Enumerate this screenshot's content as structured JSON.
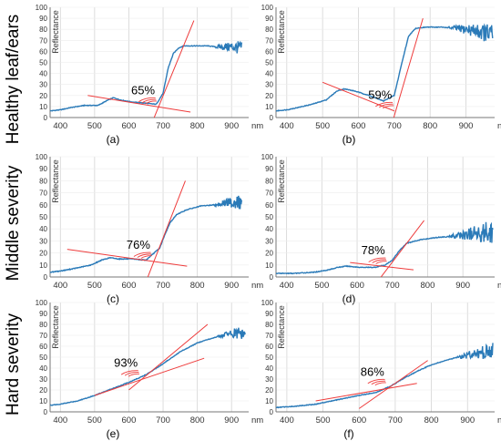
{
  "row_labels": [
    "Healthy leaf/ears",
    "Middle severity",
    "Hard severity"
  ],
  "colors": {
    "spectrum": "#2a7ab8",
    "fit_lines": "#ee3b3b",
    "grid": "#d4d4d4",
    "axis": "#777777"
  },
  "chart_data": [
    {
      "type": "line",
      "panel": "(a)",
      "ylabel": "Reflectance",
      "x_unit": "nm",
      "xlim": [
        370,
        950
      ],
      "ylim": [
        0,
        100
      ],
      "x_ticks": [
        400,
        500,
        600,
        700,
        800,
        900
      ],
      "y_ticks": [
        0,
        10,
        20,
        30,
        40,
        50,
        60,
        70,
        80,
        90,
        100
      ],
      "annotation": "65%",
      "spectrum": {
        "x": [
          370,
          400,
          430,
          470,
          510,
          540,
          555,
          575,
          610,
          650,
          680,
          700,
          715,
          730,
          745,
          760,
          790,
          830,
          860,
          900,
          930
        ],
        "y": [
          6,
          7,
          9,
          11,
          11,
          16,
          18,
          16,
          14,
          13,
          12,
          22,
          45,
          58,
          63,
          65,
          65,
          65,
          64,
          64,
          63
        ]
      },
      "noise_from_x": 850,
      "fit_lines": [
        {
          "x": [
            480,
            780
          ],
          "y": [
            20,
            5
          ]
        },
        {
          "x": [
            670,
            790
          ],
          "y": [
            -3,
            88
          ]
        }
      ]
    },
    {
      "type": "line",
      "panel": "(b)",
      "ylabel": "Reflectance",
      "x_unit": "nm",
      "xlim": [
        370,
        980
      ],
      "ylim": [
        0,
        100
      ],
      "x_ticks": [
        400,
        500,
        600,
        700,
        800,
        900
      ],
      "y_ticks": [
        0,
        10,
        20,
        30,
        40,
        50,
        60,
        70,
        80,
        90,
        100
      ],
      "annotation": "59%",
      "spectrum": {
        "x": [
          370,
          400,
          430,
          470,
          510,
          540,
          560,
          590,
          630,
          670,
          700,
          720,
          740,
          760,
          790,
          830,
          870,
          900,
          940,
          975
        ],
        "y": [
          6,
          7,
          9,
          12,
          16,
          24,
          26,
          24,
          20,
          15,
          20,
          48,
          74,
          81,
          82,
          82,
          81,
          80,
          78,
          75
        ]
      },
      "noise_from_x": 850,
      "fit_lines": [
        {
          "x": [
            500,
            700
          ],
          "y": [
            32,
            6
          ]
        },
        {
          "x": [
            695,
            780
          ],
          "y": [
            -4,
            90
          ]
        }
      ]
    },
    {
      "type": "line",
      "panel": "(c)",
      "ylabel": "Reflectance",
      "x_unit": "nm",
      "xlim": [
        370,
        950
      ],
      "ylim": [
        0,
        100
      ],
      "x_ticks": [
        400,
        500,
        600,
        700,
        800,
        900
      ],
      "y_ticks": [
        0,
        10,
        20,
        30,
        40,
        50,
        60,
        70,
        80,
        90,
        100
      ],
      "annotation": "76%",
      "spectrum": {
        "x": [
          370,
          400,
          440,
          490,
          520,
          545,
          570,
          610,
          650,
          690,
          705,
          720,
          740,
          770,
          810,
          850,
          890,
          930
        ],
        "y": [
          4,
          5,
          7,
          10,
          14,
          16,
          15,
          15,
          14,
          24,
          35,
          45,
          52,
          56,
          59,
          60,
          62,
          62
        ]
      },
      "noise_from_x": 850,
      "fit_lines": [
        {
          "x": [
            420,
            770
          ],
          "y": [
            23,
            9
          ]
        },
        {
          "x": [
            650,
            765
          ],
          "y": [
            -4,
            80
          ]
        }
      ]
    },
    {
      "type": "line",
      "panel": "(d)",
      "ylabel": "Reflectance",
      "x_unit": "nm",
      "xlim": [
        370,
        990
      ],
      "ylim": [
        0,
        100
      ],
      "x_ticks": [
        400,
        500,
        600,
        700,
        800,
        900
      ],
      "y_ticks": [
        0,
        10,
        20,
        30,
        40,
        50,
        60,
        70,
        80,
        90,
        100
      ],
      "annotation": "78%",
      "spectrum": {
        "x": [
          370,
          420,
          480,
          520,
          545,
          570,
          610,
          650,
          680,
          700,
          720,
          740,
          780,
          830,
          880,
          930,
          985
        ],
        "y": [
          3,
          3,
          4,
          6,
          8,
          9,
          8,
          8,
          10,
          14,
          22,
          28,
          31,
          33,
          34,
          36,
          38
        ]
      },
      "noise_from_x": 860,
      "fit_lines": [
        {
          "x": [
            580,
            760
          ],
          "y": [
            12,
            6
          ]
        },
        {
          "x": [
            660,
            790
          ],
          "y": [
            -3,
            47
          ]
        }
      ]
    },
    {
      "type": "line",
      "panel": "(e)",
      "ylabel": "Reflectance",
      "x_unit": "nm",
      "xlim": [
        370,
        950
      ],
      "ylim": [
        0,
        100
      ],
      "x_ticks": [
        400,
        500,
        600,
        700,
        800,
        900
      ],
      "y_ticks": [
        0,
        10,
        20,
        30,
        40,
        50,
        60,
        70,
        80,
        90,
        100
      ],
      "annotation": "93%",
      "spectrum": {
        "x": [
          370,
          400,
          450,
          500,
          550,
          600,
          650,
          700,
          750,
          800,
          850,
          900,
          940
        ],
        "y": [
          6,
          7,
          10,
          15,
          21,
          27,
          34,
          44,
          55,
          63,
          68,
          72,
          72
        ]
      },
      "noise_from_x": 860,
      "fit_lines": [
        {
          "x": [
            500,
            820
          ],
          "y": [
            15,
            49
          ]
        },
        {
          "x": [
            600,
            830
          ],
          "y": [
            20,
            80
          ]
        }
      ]
    },
    {
      "type": "line",
      "panel": "(f)",
      "ylabel": "Reflectance",
      "x_unit": "nm",
      "xlim": [
        370,
        975
      ],
      "ylim": [
        0,
        100
      ],
      "x_ticks": [
        400,
        500,
        600,
        700,
        800,
        900
      ],
      "y_ticks": [
        0,
        10,
        20,
        30,
        40,
        50,
        60,
        70,
        80,
        90,
        100
      ],
      "annotation": "86%",
      "spectrum": {
        "x": [
          370,
          420,
          480,
          540,
          600,
          650,
          690,
          720,
          760,
          800,
          850,
          900,
          950,
          970
        ],
        "y": [
          4,
          5,
          7,
          11,
          15,
          18,
          24,
          30,
          37,
          43,
          48,
          52,
          55,
          56
        ]
      },
      "noise_from_x": 870,
      "fit_lines": [
        {
          "x": [
            480,
            760
          ],
          "y": [
            10,
            26
          ]
        },
        {
          "x": [
            600,
            790
          ],
          "y": [
            3,
            47
          ]
        }
      ]
    }
  ]
}
